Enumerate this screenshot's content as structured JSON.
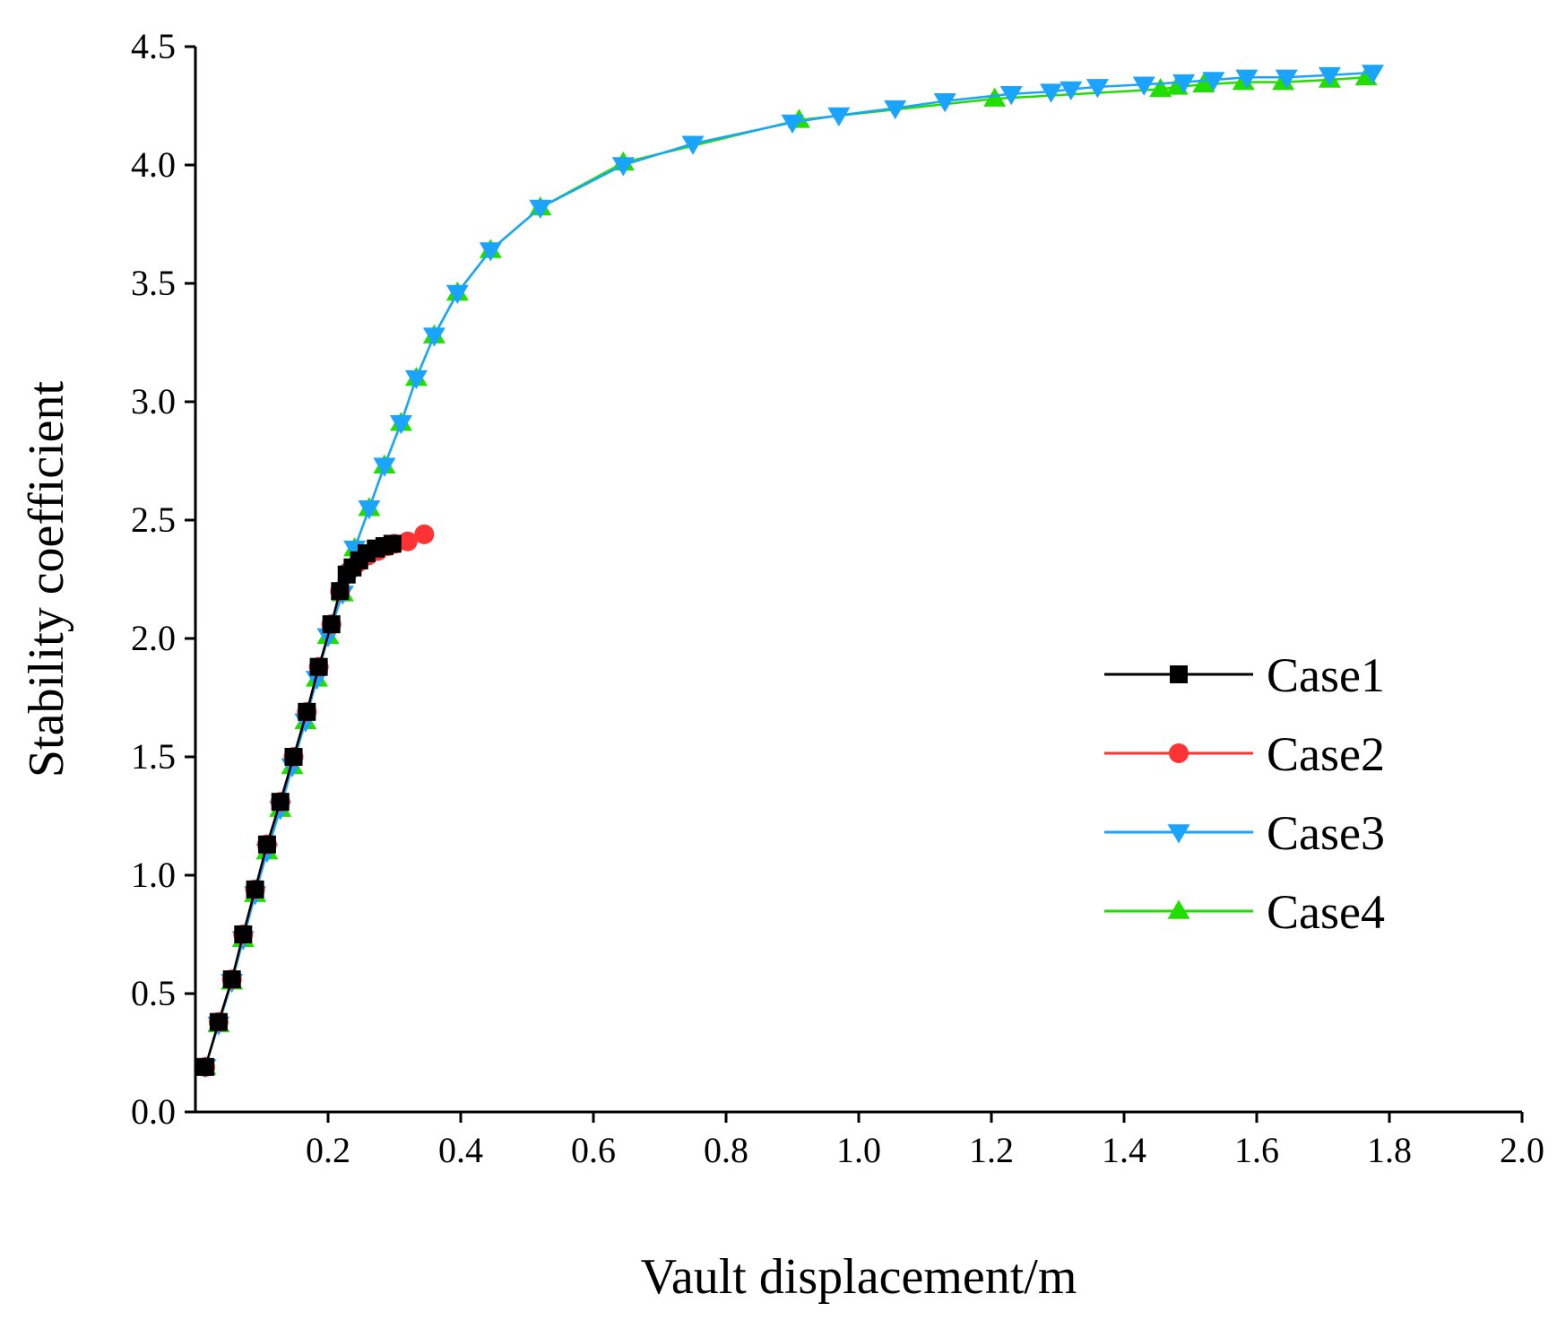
{
  "chart_data": {
    "type": "line",
    "title": "",
    "xlabel": "Vault displacement/m",
    "ylabel": "Stability coefficient",
    "xlim": [
      0,
      2.0
    ],
    "ylim": [
      0,
      4.5
    ],
    "xticks": [
      "0.2",
      "0.4",
      "0.6",
      "0.8",
      "1.0",
      "1.2",
      "1.4",
      "1.6",
      "1.8",
      "2.0"
    ],
    "yticks": [
      "0.0",
      "0.5",
      "1.0",
      "1.5",
      "2.0",
      "2.5",
      "3.0",
      "3.5",
      "4.0",
      "4.5"
    ],
    "legend_position": "center-right",
    "grid": false,
    "series": [
      {
        "name": "Case1",
        "color": "#000000",
        "marker": "square",
        "x": [
          0.015,
          0.035,
          0.055,
          0.072,
          0.09,
          0.108,
          0.128,
          0.148,
          0.168,
          0.186,
          0.205,
          0.218,
          0.228,
          0.237,
          0.247,
          0.258,
          0.272,
          0.285,
          0.297
        ],
        "y": [
          0.19,
          0.38,
          0.56,
          0.75,
          0.94,
          1.13,
          1.31,
          1.5,
          1.69,
          1.88,
          2.06,
          2.2,
          2.27,
          2.3,
          2.33,
          2.36,
          2.38,
          2.39,
          2.4
        ]
      },
      {
        "name": "Case2",
        "color": "#ff3333",
        "marker": "circle",
        "x": [
          0.015,
          0.035,
          0.055,
          0.072,
          0.09,
          0.108,
          0.128,
          0.148,
          0.168,
          0.186,
          0.205,
          0.218,
          0.23,
          0.245,
          0.26,
          0.275,
          0.29,
          0.3,
          0.32,
          0.345
        ],
        "y": [
          0.19,
          0.38,
          0.56,
          0.75,
          0.94,
          1.13,
          1.31,
          1.5,
          1.69,
          1.88,
          2.06,
          2.2,
          2.28,
          2.32,
          2.35,
          2.37,
          2.39,
          2.4,
          2.41,
          2.44
        ]
      },
      {
        "name": "Case3",
        "color": "#1aa3ff",
        "marker": "triangle-down",
        "x": [
          0.015,
          0.035,
          0.055,
          0.072,
          0.09,
          0.108,
          0.128,
          0.146,
          0.166,
          0.183,
          0.2,
          0.222,
          0.24,
          0.262,
          0.285,
          0.31,
          0.333,
          0.36,
          0.395,
          0.445,
          0.52,
          0.645,
          0.75,
          0.9,
          0.97,
          1.055,
          1.13,
          1.23,
          1.29,
          1.32,
          1.36,
          1.43,
          1.49,
          1.535,
          1.585,
          1.645,
          1.71,
          1.775
        ],
        "y": [
          0.19,
          0.37,
          0.55,
          0.73,
          0.92,
          1.1,
          1.28,
          1.46,
          1.65,
          1.83,
          2.01,
          2.19,
          2.38,
          2.55,
          2.73,
          2.91,
          3.1,
          3.28,
          3.46,
          3.64,
          3.82,
          4.0,
          4.09,
          4.18,
          4.21,
          4.24,
          4.27,
          4.3,
          4.31,
          4.32,
          4.33,
          4.34,
          4.35,
          4.36,
          4.37,
          4.37,
          4.38,
          4.39
        ]
      },
      {
        "name": "Case4",
        "color": "#22dd00",
        "marker": "triangle-up",
        "x": [
          0.015,
          0.035,
          0.055,
          0.072,
          0.09,
          0.108,
          0.128,
          0.146,
          0.166,
          0.183,
          0.2,
          0.222,
          0.24,
          0.262,
          0.285,
          0.31,
          0.333,
          0.36,
          0.395,
          0.445,
          0.52,
          0.645,
          0.91,
          1.205,
          1.455,
          1.48,
          1.52,
          1.58,
          1.64,
          1.71,
          1.765
        ],
        "y": [
          0.19,
          0.37,
          0.55,
          0.73,
          0.92,
          1.1,
          1.28,
          1.46,
          1.65,
          1.83,
          2.01,
          2.19,
          2.38,
          2.55,
          2.73,
          2.91,
          3.1,
          3.28,
          3.46,
          3.64,
          3.82,
          4.01,
          4.19,
          4.28,
          4.32,
          4.33,
          4.34,
          4.35,
          4.35,
          4.36,
          4.37
        ]
      }
    ]
  }
}
